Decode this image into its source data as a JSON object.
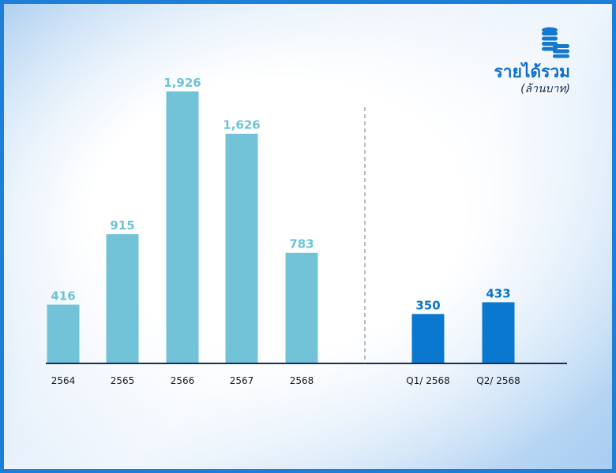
{
  "chart_data": {
    "type": "bar",
    "title": "รายได้รวม",
    "subtitle": "(ล้านบาท)",
    "ylim": [
      0,
      2100
    ],
    "grid": false,
    "series": [
      {
        "categories": [
          "2564",
          "2565",
          "2566",
          "2567",
          "2568"
        ],
        "values": [
          416,
          915,
          1926,
          1626,
          783
        ],
        "labels": [
          "416",
          "915",
          "1,926",
          "1,626",
          "783"
        ],
        "color": "#72c3d7",
        "label_color": "#6cc3d6"
      },
      {
        "categories": [
          "Q1/ 2568",
          "Q2/ 2568"
        ],
        "values": [
          350,
          433
        ],
        "labels": [
          "350",
          "433"
        ],
        "color": "#0a78cf",
        "label_color": "#0b74c8"
      }
    ]
  },
  "icons": {
    "title": "coins-stack-icon"
  },
  "colors": {
    "axis": "#1a2d5a",
    "divider": "#6b7a8c",
    "tick_text": "#1a1a1a"
  }
}
